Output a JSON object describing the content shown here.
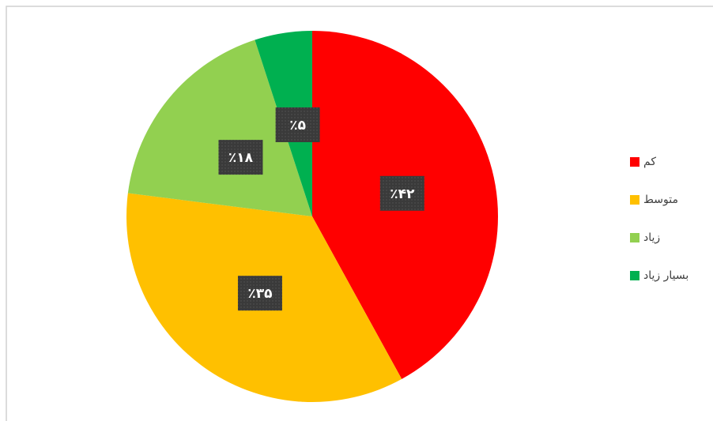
{
  "chart_data": {
    "type": "pie",
    "categories": [
      "کم",
      "متوسط",
      "زیاد",
      "بسیار زیاد"
    ],
    "values": [
      42,
      35,
      18,
      5
    ],
    "value_labels": [
      "٪۴۲",
      "٪۳۵",
      "٪۱۸",
      "٪۵"
    ],
    "colors": [
      "#ff0000",
      "#ffc000",
      "#92d050",
      "#00b050"
    ],
    "legend": "right"
  }
}
